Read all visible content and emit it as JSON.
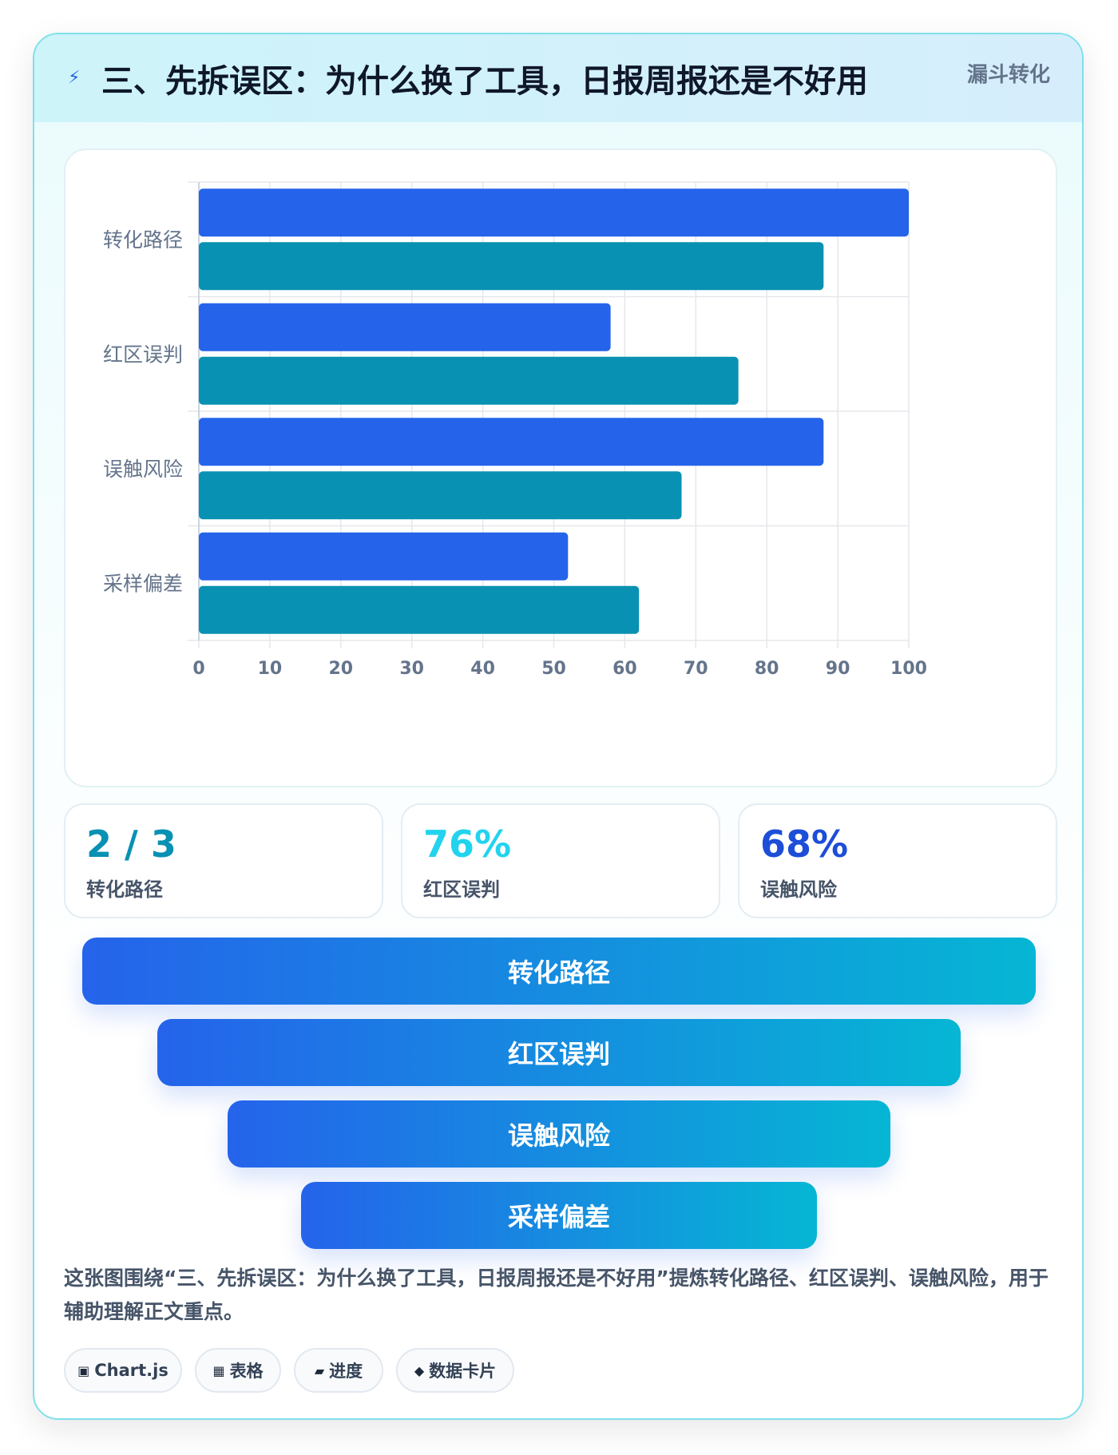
{
  "header": {
    "icon": "lightning-icon",
    "title": "三、先拆误区：为什么换了工具，日报周报还是不好用",
    "tag": "漏斗转化"
  },
  "colors": {
    "series_a": "#2563eb",
    "series_b": "#0891b2",
    "funnel_start": "#2563eb",
    "funnel_end": "#06b6d4"
  },
  "chart_data": {
    "type": "bar",
    "orientation": "horizontal",
    "categories": [
      "转化路径",
      "红区误判",
      "误触风险",
      "采样偏差"
    ],
    "series": [
      {
        "values": [
          100,
          58,
          88,
          52
        ],
        "color": "#2563eb"
      },
      {
        "values": [
          88,
          76,
          68,
          62
        ],
        "color": "#0891b2"
      }
    ],
    "xlim": [
      0,
      100
    ],
    "xticks": [
      "0",
      "10",
      "20",
      "30",
      "40",
      "50",
      "60",
      "70",
      "80",
      "90",
      "100"
    ],
    "grid": true,
    "legend": "none"
  },
  "stats": [
    {
      "value": "2 / 3",
      "label": "转化路径",
      "color": "#0891b2"
    },
    {
      "value": "76%",
      "label": "红区误判",
      "color": "#22d3ee"
    },
    {
      "value": "68%",
      "label": "误触风险",
      "color": "#1d4ed8"
    }
  ],
  "funnel": [
    {
      "label": "转化路径"
    },
    {
      "label": "红区误判"
    },
    {
      "label": "误触风险"
    },
    {
      "label": "采样偏差"
    }
  ],
  "caption": "这张图围绕“三、先拆误区：为什么换了工具，日报周报还是不好用”提炼转化路径、红区误判、误触风险，用于辅助理解正文重点。",
  "tags": [
    {
      "icon": "chart-icon",
      "glyph": "▣",
      "label": "Chart.js"
    },
    {
      "icon": "table-icon",
      "glyph": "▦",
      "label": "表格"
    },
    {
      "icon": "progress-icon",
      "glyph": "▰",
      "label": "进度"
    },
    {
      "icon": "data-card-icon",
      "glyph": "◆",
      "label": "数据卡片"
    }
  ]
}
